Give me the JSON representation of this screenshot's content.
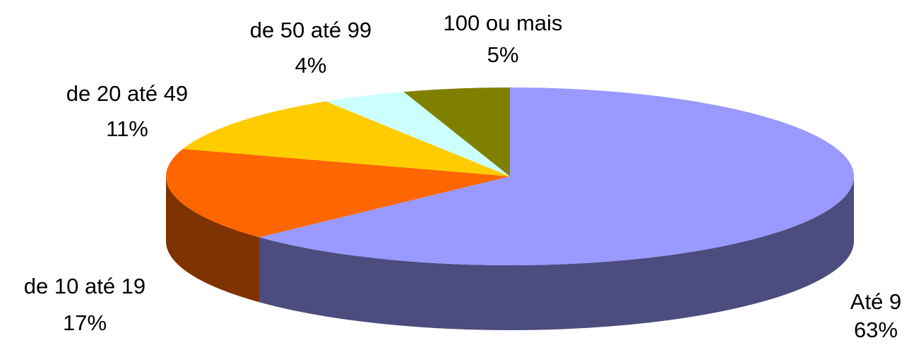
{
  "chart_data": {
    "type": "pie3d",
    "categories": [
      "Até 9",
      "de 10 até 19",
      "de 20 até 49",
      "de 50 até 99",
      "100 ou mais"
    ],
    "values": [
      63,
      17,
      11,
      4,
      5
    ],
    "value_labels": [
      "63%",
      "17%",
      "11%",
      "4%",
      "5%"
    ],
    "colors": [
      "#9999ff",
      "#ff6600",
      "#ffcc00",
      "#ccffff",
      "#808000"
    ]
  }
}
